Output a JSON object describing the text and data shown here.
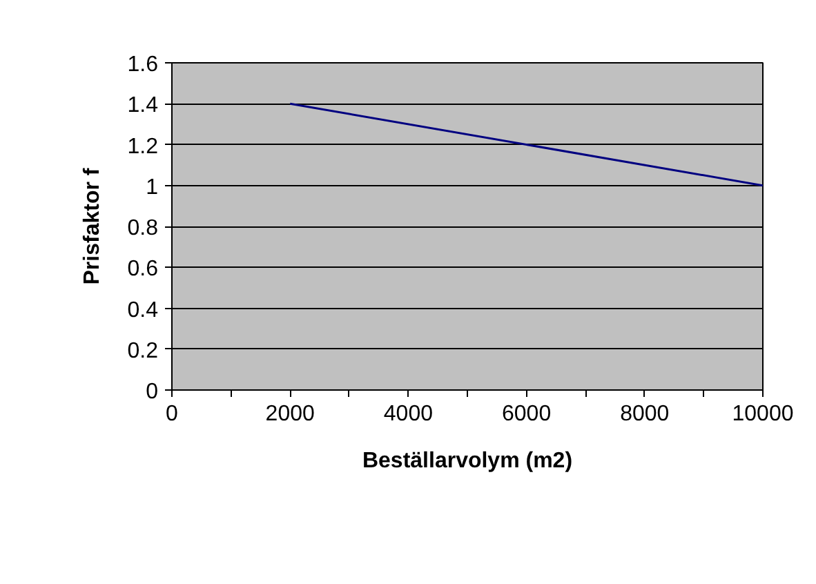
{
  "chart_data": {
    "type": "line",
    "xlabel": "Beställarvolym (m2)",
    "ylabel": "Prisfaktor f",
    "x": [
      2000,
      10000
    ],
    "series": [
      {
        "color": "#000080",
        "values": [
          1.4,
          1.0
        ]
      }
    ],
    "xlim": [
      0,
      10000
    ],
    "ylim": [
      0,
      1.6
    ],
    "xticks": [
      0,
      {
        "value": 1000,
        "label": null
      },
      2000,
      {
        "value": 3000,
        "label": null
      },
      4000,
      {
        "value": 5000,
        "label": null
      },
      6000,
      {
        "value": 7000,
        "label": null
      },
      8000,
      {
        "value": 9000,
        "label": null
      },
      10000
    ],
    "yticks": [
      0,
      0.2,
      0.4,
      0.6,
      0.8,
      1,
      1.2,
      1.4,
      1.6
    ],
    "grid": "y",
    "marker": "none",
    "line_style": "solid"
  }
}
